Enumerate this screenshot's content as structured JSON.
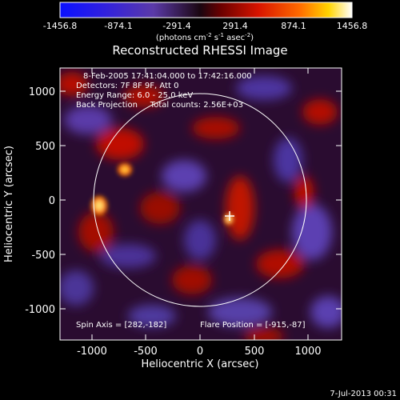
{
  "colorbar": {
    "ticks": [
      "-1456.8",
      "-874.1",
      "-291.4",
      "291.4",
      "874.1",
      "1456.8"
    ],
    "unit_main": "(photons cm",
    "unit_exp1": "-2",
    "unit_mid": " s",
    "unit_exp2": "-1",
    "unit_end": " asec",
    "unit_exp3": "-2",
    "unit_close": ")"
  },
  "plot": {
    "title": "Reconstructed RHESSI Image",
    "info_lines": [
      "8-Feb-2005 17:41:04.000 to 17:42:16.000",
      "Detectors: 7F 8F 9F, Att 0",
      "Energy Range: 6.0 - 25.0 keV",
      "Back Projection     Total counts: 2.56E+03"
    ],
    "spin_axis": "Spin Axis = [282,-182]",
    "flare_position": "Flare Position = [-915,-87]",
    "xlabel": "Heliocentric X (arcsec)",
    "ylabel": "Heliocentric Y (arcsec)",
    "xticks": [
      "-1000",
      "-500",
      "0",
      "500",
      "1000"
    ],
    "yticks": [
      "-1000",
      "-500",
      "0",
      "500",
      "1000"
    ]
  },
  "footer": {
    "timestamp": "7-Jul-2013 00:31"
  },
  "chart_data": {
    "type": "heatmap",
    "title": "Reconstructed RHESSI Image",
    "xlabel": "Heliocentric X (arcsec)",
    "ylabel": "Heliocentric Y (arcsec)",
    "xlim": [
      -1290,
      1300
    ],
    "ylim": [
      -1260,
      1230
    ],
    "xticks": [
      -1000,
      -500,
      0,
      500,
      1000
    ],
    "yticks": [
      -1000,
      -500,
      0,
      500,
      1000
    ],
    "colorbar_range": [
      -1456.8,
      1456.8
    ],
    "colorbar_ticks": [
      -1456.8,
      -874.1,
      -291.4,
      291.4,
      874.1,
      1456.8
    ],
    "colormap": "blue-purple-red-yellow-white",
    "solar_limb_radius": 985,
    "solar_limb_center": [
      0,
      0
    ],
    "marker": {
      "x": 282,
      "y": -182,
      "label": "Spin Axis"
    },
    "sources": [
      {
        "x": -915,
        "y": -87,
        "intensity": 1456
      },
      {
        "x": 270,
        "y": -190,
        "intensity": 1200
      },
      {
        "x": -700,
        "y": 280,
        "intensity": 900
      }
    ]
  }
}
